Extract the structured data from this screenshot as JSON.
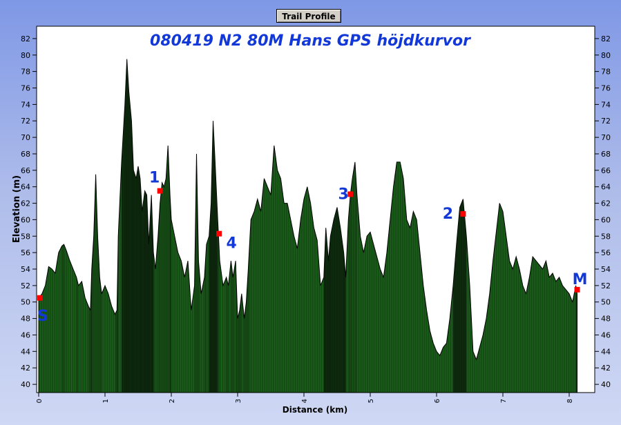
{
  "window": {
    "title_button": "Trail Profile"
  },
  "chart_data": {
    "type": "area",
    "title": "080419 N2 80M  Hans GPS höjdkurvor",
    "xlabel": "Distance (km)",
    "ylabel": "Elevation (m)",
    "xlim": [
      0,
      8.35
    ],
    "ylim": [
      39,
      83.5
    ],
    "xticks": [
      0,
      1,
      2,
      3,
      4,
      5,
      6,
      7,
      8
    ],
    "yticks": [
      40,
      42,
      44,
      46,
      48,
      50,
      52,
      54,
      56,
      58,
      60,
      62,
      64,
      66,
      68,
      70,
      72,
      74,
      76,
      78,
      80,
      82
    ],
    "grid": false,
    "colors": {
      "fill": "#1e6a1e",
      "fill_dark": "#0a1a0a",
      "marker": "#ff0000",
      "label": "#1238d8"
    },
    "profile": [
      [
        0.0,
        50.5
      ],
      [
        0.05,
        51.0
      ],
      [
        0.1,
        52.0
      ],
      [
        0.15,
        54.3
      ],
      [
        0.2,
        54.0
      ],
      [
        0.25,
        53.5
      ],
      [
        0.3,
        56.0
      ],
      [
        0.35,
        56.8
      ],
      [
        0.38,
        57.0
      ],
      [
        0.42,
        56.2
      ],
      [
        0.47,
        55.0
      ],
      [
        0.52,
        54.0
      ],
      [
        0.57,
        53.0
      ],
      [
        0.6,
        52.0
      ],
      [
        0.65,
        52.5
      ],
      [
        0.7,
        50.5
      ],
      [
        0.75,
        49.5
      ],
      [
        0.78,
        49.0
      ],
      [
        0.8,
        54.0
      ],
      [
        0.83,
        58.0
      ],
      [
        0.86,
        65.5
      ],
      [
        0.89,
        58.0
      ],
      [
        0.92,
        53.0
      ],
      [
        0.95,
        51.0
      ],
      [
        1.0,
        52.0
      ],
      [
        1.05,
        51.0
      ],
      [
        1.1,
        49.5
      ],
      [
        1.15,
        48.5
      ],
      [
        1.18,
        49.0
      ],
      [
        1.2,
        58.0
      ],
      [
        1.25,
        67.0
      ],
      [
        1.3,
        74.0
      ],
      [
        1.33,
        79.5
      ],
      [
        1.36,
        75.5
      ],
      [
        1.4,
        72.0
      ],
      [
        1.43,
        66.0
      ],
      [
        1.47,
        65.0
      ],
      [
        1.5,
        66.5
      ],
      [
        1.53,
        65.0
      ],
      [
        1.56,
        61.0
      ],
      [
        1.6,
        63.5
      ],
      [
        1.63,
        63.0
      ],
      [
        1.66,
        57.0
      ],
      [
        1.7,
        63.0
      ],
      [
        1.73,
        56.0
      ],
      [
        1.76,
        54.0
      ],
      [
        1.8,
        58.0
      ],
      [
        1.83,
        62.0
      ],
      [
        1.86,
        64.5
      ],
      [
        1.89,
        64.0
      ],
      [
        1.92,
        65.0
      ],
      [
        1.95,
        69.0
      ],
      [
        1.98,
        63.0
      ],
      [
        2.0,
        60.0
      ],
      [
        2.05,
        58.0
      ],
      [
        2.1,
        56.0
      ],
      [
        2.15,
        55.0
      ],
      [
        2.2,
        53.0
      ],
      [
        2.25,
        55.0
      ],
      [
        2.3,
        49.0
      ],
      [
        2.35,
        52.0
      ],
      [
        2.38,
        68.0
      ],
      [
        2.41,
        55.0
      ],
      [
        2.45,
        51.0
      ],
      [
        2.5,
        53.0
      ],
      [
        2.53,
        57.0
      ],
      [
        2.57,
        58.0
      ],
      [
        2.6,
        62.0
      ],
      [
        2.63,
        72.0
      ],
      [
        2.66,
        67.0
      ],
      [
        2.7,
        60.0
      ],
      [
        2.73,
        55.0
      ],
      [
        2.78,
        52.0
      ],
      [
        2.83,
        53.0
      ],
      [
        2.86,
        52.0
      ],
      [
        2.9,
        55.0
      ],
      [
        2.93,
        53.0
      ],
      [
        2.97,
        55.0
      ],
      [
        3.0,
        48.0
      ],
      [
        3.03,
        49.0
      ],
      [
        3.06,
        51.0
      ],
      [
        3.1,
        48.0
      ],
      [
        3.13,
        50.0
      ],
      [
        3.16,
        54.0
      ],
      [
        3.2,
        60.0
      ],
      [
        3.25,
        61.0
      ],
      [
        3.3,
        62.5
      ],
      [
        3.35,
        61.0
      ],
      [
        3.4,
        65.0
      ],
      [
        3.45,
        64.0
      ],
      [
        3.5,
        63.0
      ],
      [
        3.55,
        69.0
      ],
      [
        3.6,
        66.0
      ],
      [
        3.65,
        65.0
      ],
      [
        3.7,
        62.0
      ],
      [
        3.75,
        62.0
      ],
      [
        3.8,
        60.0
      ],
      [
        3.85,
        58.0
      ],
      [
        3.9,
        56.5
      ],
      [
        3.95,
        60.0
      ],
      [
        4.0,
        62.5
      ],
      [
        4.05,
        64.0
      ],
      [
        4.1,
        62.0
      ],
      [
        4.15,
        59.0
      ],
      [
        4.2,
        57.5
      ],
      [
        4.25,
        52.0
      ],
      [
        4.3,
        53.0
      ],
      [
        4.33,
        59.0
      ],
      [
        4.37,
        55.0
      ],
      [
        4.4,
        58.0
      ],
      [
        4.45,
        60.0
      ],
      [
        4.5,
        61.5
      ],
      [
        4.55,
        59.0
      ],
      [
        4.6,
        56.0
      ],
      [
        4.63,
        53.0
      ],
      [
        4.67,
        60.0
      ],
      [
        4.7,
        63.0
      ],
      [
        4.73,
        65.0
      ],
      [
        4.77,
        67.0
      ],
      [
        4.8,
        63.0
      ],
      [
        4.85,
        58.0
      ],
      [
        4.9,
        56.0
      ],
      [
        4.95,
        58.0
      ],
      [
        5.0,
        58.5
      ],
      [
        5.05,
        57.0
      ],
      [
        5.1,
        55.5
      ],
      [
        5.15,
        54.0
      ],
      [
        5.2,
        53.0
      ],
      [
        5.25,
        56.0
      ],
      [
        5.3,
        60.0
      ],
      [
        5.35,
        64.0
      ],
      [
        5.4,
        67.0
      ],
      [
        5.45,
        67.0
      ],
      [
        5.5,
        65.0
      ],
      [
        5.55,
        60.0
      ],
      [
        5.6,
        59.0
      ],
      [
        5.65,
        61.0
      ],
      [
        5.7,
        60.0
      ],
      [
        5.75,
        56.0
      ],
      [
        5.8,
        52.0
      ],
      [
        5.85,
        49.0
      ],
      [
        5.9,
        46.5
      ],
      [
        5.95,
        45.0
      ],
      [
        6.0,
        44.0
      ],
      [
        6.05,
        43.5
      ],
      [
        6.1,
        44.5
      ],
      [
        6.15,
        45.0
      ],
      [
        6.2,
        48.0
      ],
      [
        6.25,
        52.0
      ],
      [
        6.3,
        57.0
      ],
      [
        6.35,
        61.5
      ],
      [
        6.4,
        62.5
      ],
      [
        6.45,
        58.0
      ],
      [
        6.5,
        52.0
      ],
      [
        6.55,
        44.0
      ],
      [
        6.6,
        43.0
      ],
      [
        6.65,
        44.5
      ],
      [
        6.7,
        46.0
      ],
      [
        6.75,
        48.0
      ],
      [
        6.8,
        51.0
      ],
      [
        6.85,
        55.0
      ],
      [
        6.9,
        58.5
      ],
      [
        6.95,
        62.0
      ],
      [
        7.0,
        61.0
      ],
      [
        7.05,
        58.0
      ],
      [
        7.1,
        55.0
      ],
      [
        7.15,
        54.0
      ],
      [
        7.2,
        55.5
      ],
      [
        7.25,
        54.0
      ],
      [
        7.3,
        52.0
      ],
      [
        7.35,
        51.0
      ],
      [
        7.4,
        53.0
      ],
      [
        7.45,
        55.5
      ],
      [
        7.5,
        55.0
      ],
      [
        7.55,
        54.5
      ],
      [
        7.6,
        54.0
      ],
      [
        7.65,
        55.0
      ],
      [
        7.7,
        53.0
      ],
      [
        7.75,
        53.5
      ],
      [
        7.8,
        52.5
      ],
      [
        7.85,
        53.0
      ],
      [
        7.9,
        52.0
      ],
      [
        7.95,
        51.5
      ],
      [
        8.0,
        51.0
      ],
      [
        8.05,
        50.0
      ],
      [
        8.1,
        52.0
      ],
      [
        8.12,
        51.0
      ]
    ],
    "markers": [
      {
        "label": "S",
        "x": 0.02,
        "y": 50.5
      },
      {
        "label": "1",
        "x": 1.83,
        "y": 63.5
      },
      {
        "label": "4",
        "x": 2.72,
        "y": 58.3
      },
      {
        "label": "3",
        "x": 4.7,
        "y": 63.1
      },
      {
        "label": "2",
        "x": 6.4,
        "y": 60.7
      },
      {
        "label": "M",
        "x": 8.12,
        "y": 51.5
      }
    ]
  }
}
